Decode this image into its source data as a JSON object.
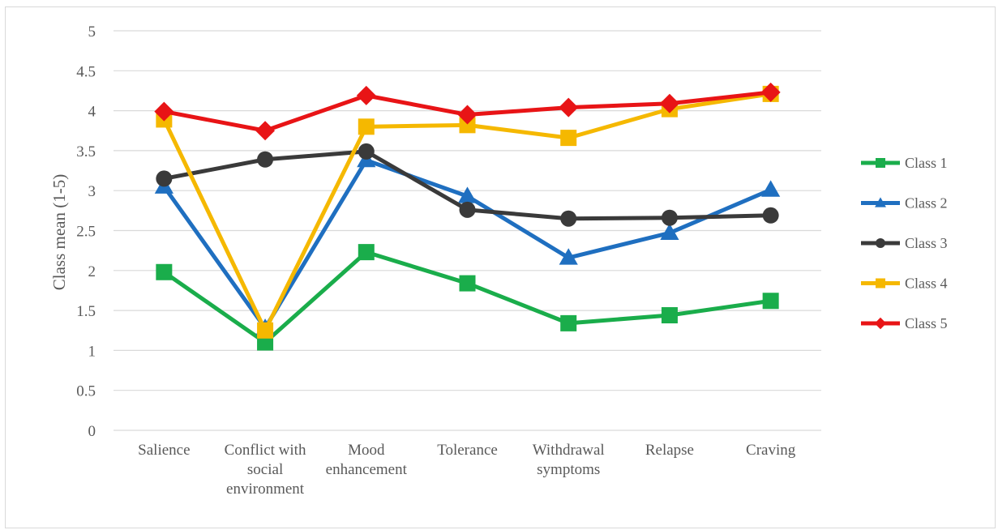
{
  "chart_data": {
    "type": "line",
    "categories": [
      [
        "Salience"
      ],
      [
        "Conflict with",
        "social",
        "environment"
      ],
      [
        "Mood",
        "enhancement"
      ],
      [
        "Tolerance"
      ],
      [
        "Withdrawal",
        "symptoms"
      ],
      [
        "Relapse"
      ],
      [
        "Craving"
      ]
    ],
    "ylabel": "Class mean (1-5)",
    "xlabel": "",
    "ylim": [
      0,
      5
    ],
    "yticks": [
      0,
      0.5,
      1,
      1.5,
      2,
      2.5,
      3,
      3.5,
      4,
      4.5,
      5
    ],
    "grid": true,
    "legend_position": "right",
    "series": [
      {
        "name": "Class 1",
        "color": "#1aad4b",
        "marker": "square",
        "values": [
          1.98,
          1.1,
          2.23,
          1.84,
          1.34,
          1.44,
          1.62
        ]
      },
      {
        "name": "Class 2",
        "color": "#1f6fc0",
        "marker": "triangle",
        "values": [
          3.05,
          1.28,
          3.38,
          2.93,
          2.16,
          2.47,
          3.01
        ]
      },
      {
        "name": "Class 3",
        "color": "#3a3a3a",
        "marker": "circle",
        "values": [
          3.15,
          3.39,
          3.49,
          2.76,
          2.65,
          2.66,
          2.69
        ]
      },
      {
        "name": "Class 4",
        "color": "#f5b800",
        "marker": "square",
        "values": [
          3.89,
          1.25,
          3.8,
          3.82,
          3.66,
          4.02,
          4.21
        ]
      },
      {
        "name": "Class 5",
        "color": "#e81416",
        "marker": "diamond",
        "values": [
          3.99,
          3.75,
          4.19,
          3.95,
          4.04,
          4.09,
          4.23
        ]
      }
    ]
  }
}
